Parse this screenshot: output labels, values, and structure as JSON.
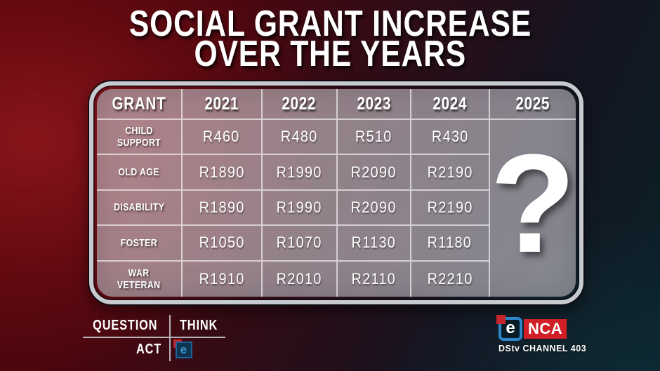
{
  "title": {
    "line1": "SOCIAL GRANT INCREASE",
    "line2": "OVER THE YEARS"
  },
  "table": {
    "header": [
      "GRANT",
      "2021",
      "2022",
      "2023",
      "2024",
      "2025"
    ],
    "rows": [
      {
        "label": "CHILD\nSUPPORT",
        "values": [
          "R460",
          "R480",
          "R510",
          "R430"
        ]
      },
      {
        "label": "OLD AGE",
        "values": [
          "R1890",
          "R1990",
          "R2090",
          "R2190"
        ]
      },
      {
        "label": "DISABILITY",
        "values": [
          "R1890",
          "R1990",
          "R2090",
          "R2190"
        ]
      },
      {
        "label": "FOSTER",
        "values": [
          "R1050",
          "R1070",
          "R1130",
          "R1180"
        ]
      },
      {
        "label": "WAR\nVETERAN",
        "values": [
          "R1910",
          "R2010",
          "R2110",
          "R2210"
        ]
      }
    ],
    "future_placeholder": "?"
  },
  "chart_data": {
    "type": "table",
    "title": "SOCIAL GRANT INCREASE OVER THE YEARS",
    "columns": [
      "GRANT",
      "2021",
      "2022",
      "2023",
      "2024",
      "2025"
    ],
    "rows": [
      [
        "CHILD SUPPORT",
        "R460",
        "R480",
        "R510",
        "R430",
        "?"
      ],
      [
        "OLD AGE",
        "R1890",
        "R1990",
        "R2090",
        "R2190",
        "?"
      ],
      [
        "DISABILITY",
        "R1890",
        "R1990",
        "R2090",
        "R2190",
        "?"
      ],
      [
        "FOSTER",
        "R1050",
        "R1070",
        "R1130",
        "R1180",
        "?"
      ],
      [
        "WAR VETERAN",
        "R1910",
        "R2010",
        "R2110",
        "R2210",
        "?"
      ]
    ],
    "note_2025": "single large question mark spans the 2025 column"
  },
  "footer": {
    "campaign": {
      "word1": "QUESTION",
      "word2": "THINK",
      "word3": "ACT",
      "logo_letter": "e"
    },
    "channel": {
      "logo_e": "e",
      "logo_nca": "NCA",
      "tagline": "DStv CHANNEL 403"
    }
  },
  "colors": {
    "background_red": "#55060d",
    "background_teal": "#0c2029",
    "panel_silver_border": "#c7cacf",
    "enca_blue": "#2e86c9",
    "enca_red": "#d01f26",
    "text": "#ffffff"
  }
}
